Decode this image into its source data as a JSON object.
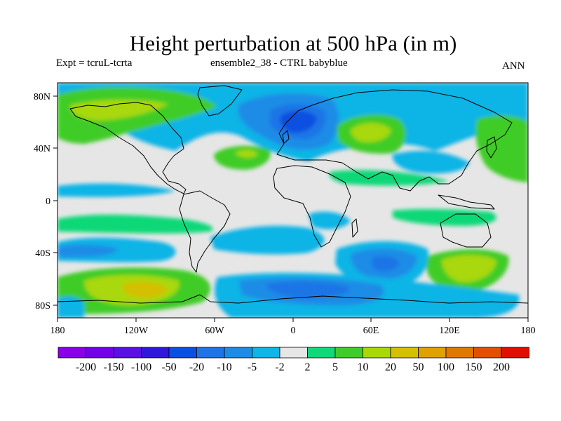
{
  "title": "Height perturbation at 500 hPa (in m)",
  "subtitle_left": "Expt = tcruL-tcrta",
  "subtitle_center": "ensemble2_38 - CTRL babyblue",
  "subtitle_right": "ANN",
  "map": {
    "projection": "cylindrical equidistant",
    "lat_ticks": [
      "80N",
      "40N",
      "0",
      "40S",
      "80S"
    ],
    "lon_ticks": [
      "180",
      "120W",
      "60W",
      "0",
      "60E",
      "120E",
      "180"
    ]
  },
  "colorbar": {
    "colors": [
      "#8a00e6",
      "#7400e6",
      "#5a10e0",
      "#3018d8",
      "#0a50e0",
      "#1e74e6",
      "#1e8ce6",
      "#10b4e6",
      "#e6e6e6",
      "#10d878",
      "#40cc28",
      "#a8d808",
      "#d4c000",
      "#e0a000",
      "#e07800",
      "#e05000",
      "#e01000"
    ],
    "labels": [
      "-200",
      "-150",
      "-100",
      "-50",
      "-20",
      "-10",
      "-5",
      "-2",
      "2",
      "5",
      "10",
      "20",
      "50",
      "100",
      "150",
      "200"
    ]
  }
}
